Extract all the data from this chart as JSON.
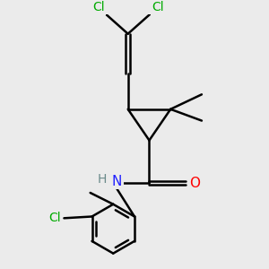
{
  "background_color": "#ebebeb",
  "atom_colors": {
    "C": "#000000",
    "H": "#6a8a8a",
    "N": "#2020ff",
    "O": "#ff0000",
    "Cl": "#00aa00"
  },
  "bond_color": "#000000",
  "bond_width": 1.8,
  "figsize": [
    3.0,
    3.0
  ],
  "dpi": 100,
  "xlim": [
    -2.5,
    3.5
  ],
  "ylim": [
    -4.5,
    3.2
  ]
}
